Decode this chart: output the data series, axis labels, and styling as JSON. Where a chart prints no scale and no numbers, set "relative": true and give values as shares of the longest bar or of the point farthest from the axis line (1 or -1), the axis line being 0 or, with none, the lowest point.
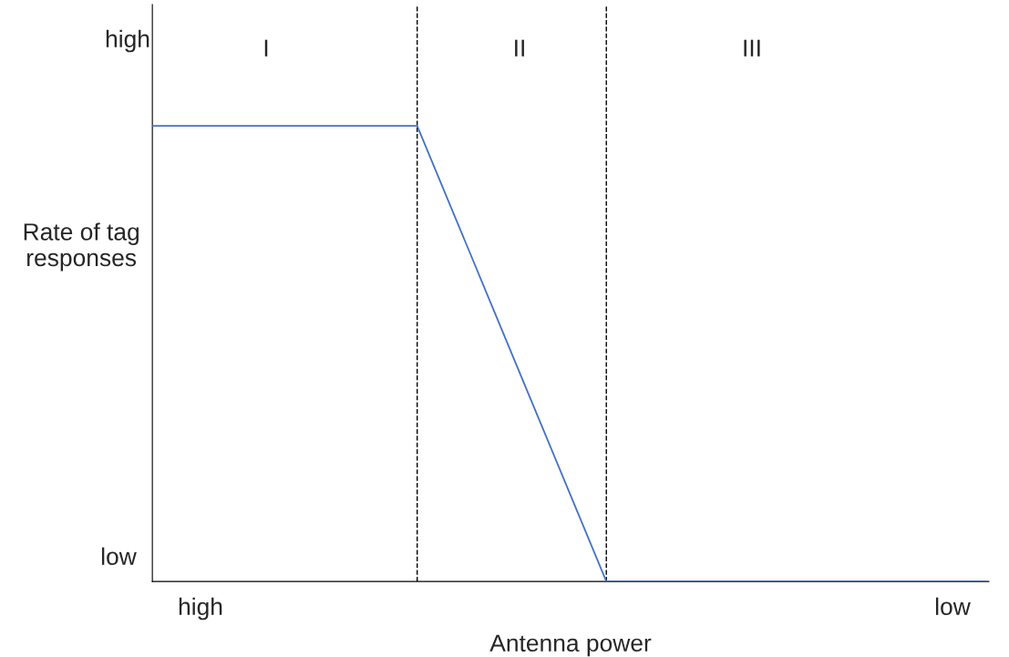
{
  "chart_data": {
    "type": "line",
    "xlabel": "Antenna power",
    "ylabel": "Rate of tag\nresponses",
    "relative": true,
    "categories": [
      null,
      null,
      null,
      null,
      null,
      null,
      null,
      null,
      null,
      null,
      null,
      null,
      null,
      null,
      null,
      null,
      null,
      null,
      null,
      null,
      null,
      null,
      null
    ],
    "series": [
      {
        "color": "#4472c4",
        "values": [
          1,
          1,
          1,
          1,
          1,
          1,
          1,
          1,
          0.8,
          0.6,
          0.4,
          0.2,
          0,
          0,
          0,
          0,
          0,
          0,
          0,
          0,
          0,
          0,
          0
        ]
      }
    ],
    "annotations": [
      "I",
      "II",
      "III",
      "high",
      "low",
      "high",
      "low"
    ],
    "legend": false,
    "marker": "none",
    "line_style": "solid"
  }
}
